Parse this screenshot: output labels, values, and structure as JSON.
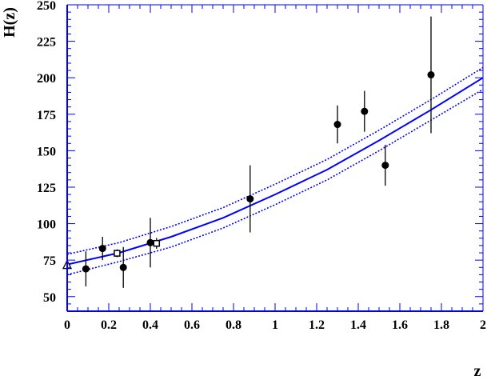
{
  "chart_data": {
    "type": "scatter",
    "title": "",
    "xlabel": "z",
    "ylabel": "H(z)",
    "xlim": [
      0,
      2
    ],
    "ylim": [
      40,
      250
    ],
    "x_ticks": [
      0,
      0.2,
      0.4,
      0.6,
      0.8,
      1,
      1.2,
      1.4,
      1.6,
      1.8,
      2
    ],
    "x_tick_labels": [
      "0",
      "0.2",
      "0.4",
      "0.6",
      "0.8",
      "1",
      "1.2",
      "1.4",
      "1.6",
      "1.8",
      "2"
    ],
    "y_ticks": [
      50,
      75,
      100,
      125,
      150,
      175,
      200,
      225,
      250
    ],
    "y_tick_labels": [
      "50",
      "75",
      "100",
      "125",
      "150",
      "175",
      "200",
      "225",
      "250"
    ],
    "grid": false,
    "colors": {
      "axes": "#0000ff",
      "fit": "#0000ff",
      "points": "#000000"
    },
    "series": [
      {
        "marker": "filled-circle",
        "points": [
          {
            "x": 0.09,
            "y": 69,
            "err": 12
          },
          {
            "x": 0.17,
            "y": 83,
            "err": 8
          },
          {
            "x": 0.27,
            "y": 70,
            "err": 14
          },
          {
            "x": 0.4,
            "y": 87,
            "err": 17
          },
          {
            "x": 0.88,
            "y": 117,
            "err": 23
          },
          {
            "x": 1.3,
            "y": 168,
            "err": 13
          },
          {
            "x": 1.43,
            "y": 177,
            "err": 14
          },
          {
            "x": 1.53,
            "y": 140,
            "err": 14
          },
          {
            "x": 1.75,
            "y": 202,
            "err": 40
          }
        ]
      },
      {
        "marker": "open-square",
        "points": [
          {
            "x": 0.24,
            "y": 79.7,
            "err": 2.7
          },
          {
            "x": 0.43,
            "y": 86.5,
            "err": 3.7
          }
        ]
      },
      {
        "marker": "open-triangle",
        "points": [
          {
            "x": 0.0,
            "y": 72,
            "err": 0
          }
        ]
      }
    ],
    "curves": [
      {
        "style": "solid",
        "x": [
          0,
          0.25,
          0.5,
          0.75,
          1,
          1.25,
          1.5,
          1.75,
          2
        ],
        "y": [
          72,
          80,
          91,
          104,
          120,
          137,
          157,
          178,
          200
        ]
      },
      {
        "style": "dotted",
        "x": [
          0,
          0.25,
          0.5,
          0.75,
          1,
          1.25,
          1.5,
          1.75,
          2
        ],
        "y": [
          79,
          87,
          98,
          111,
          127,
          144,
          164,
          185,
          207
        ]
      },
      {
        "style": "dotted",
        "x": [
          0,
          0.25,
          0.5,
          0.75,
          1,
          1.25,
          1.5,
          1.75,
          2
        ],
        "y": [
          65,
          74,
          84,
          97,
          113,
          130,
          150,
          171,
          192
        ]
      }
    ]
  }
}
